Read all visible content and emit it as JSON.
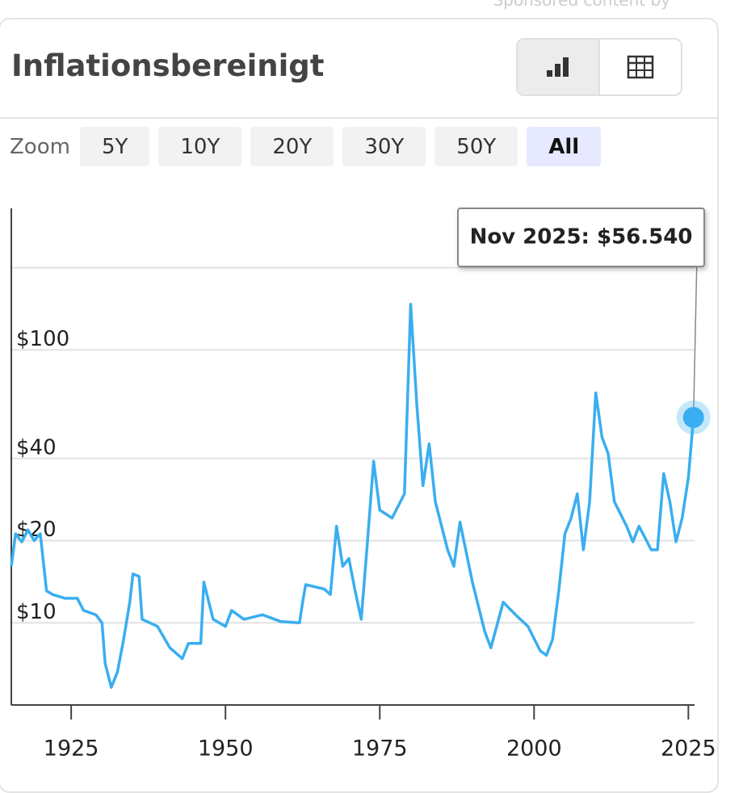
{
  "header": {
    "sponsor": "Sponsored content by"
  },
  "title": "Inflationsbereinigt",
  "zoom": {
    "label": "Zoom",
    "options": [
      "5Y",
      "10Y",
      "20Y",
      "30Y",
      "50Y",
      "All"
    ],
    "selected": 5
  },
  "chart_data": {
    "type": "line",
    "color": "#3aaef0",
    "log_scale": true,
    "grid": true,
    "x": [
      1915.3,
      1916,
      1917,
      1918,
      1919,
      1920,
      1921,
      1922,
      1924,
      1926,
      1927,
      1929,
      1930,
      1930.5,
      1931.5,
      1932.5,
      1933.5,
      1934.5,
      1935,
      1936,
      1936.5,
      1939,
      1941,
      1943,
      1944,
      1946,
      1946.5,
      1948,
      1950,
      1951,
      1953,
      1956,
      1959,
      1962,
      1962.5,
      1963,
      1966,
      1967,
      1968,
      1969,
      1970,
      1971,
      1972,
      1973,
      1974,
      1975,
      1977,
      1979,
      1980,
      1981,
      1982,
      1983,
      1984,
      1986,
      1987,
      1988,
      1990,
      1992,
      1993,
      1995,
      1997,
      1999,
      2001,
      2002,
      2003,
      2004,
      2005,
      2006,
      2007,
      2008,
      2009,
      2010,
      2011,
      2012,
      2013,
      2015,
      2016,
      2017,
      2019,
      2020,
      2021,
      2022,
      2023,
      2024,
      2025,
      2025.83
    ],
    "values": [
      16.1,
      21.2,
      19.8,
      21.9,
      20,
      21.2,
      13.1,
      12.7,
      12.3,
      12.3,
      11.1,
      10.7,
      10,
      7.1,
      5.8,
      6.6,
      8.7,
      11.9,
      15.1,
      14.8,
      10.3,
      9.7,
      8.1,
      7.4,
      8.4,
      8.4,
      14.1,
      10.3,
      9.7,
      11.1,
      10.3,
      10.7,
      10.1,
      10,
      11.9,
      13.8,
      13.3,
      12.7,
      22.6,
      16.1,
      17.2,
      13.1,
      10.3,
      19.8,
      39.1,
      25.9,
      24.2,
      29.7,
      147,
      63,
      31.8,
      45.3,
      27.8,
      18.5,
      16.1,
      23.4,
      14.1,
      9.3,
      8.1,
      11.9,
      10.7,
      9.7,
      7.9,
      7.6,
      8.7,
      13.1,
      21.2,
      24.2,
      29.7,
      18.5,
      27.8,
      69.6,
      47.9,
      41.7,
      27.8,
      22.6,
      19.8,
      22.6,
      18.5,
      18.5,
      35.2,
      27.8,
      19.8,
      24.2,
      34.1,
      56.54
    ],
    "xlim": [
      1915.3,
      2026
    ],
    "xticks": [
      1925,
      1950,
      1975,
      2000,
      2025
    ],
    "ylim": [
      5,
      330
    ],
    "yticks": [
      {
        "value": 10,
        "label": "$10"
      },
      {
        "value": 20,
        "label": "$20"
      },
      {
        "value": 40,
        "label": "$40"
      },
      {
        "value": 100,
        "label": "$100"
      },
      {
        "value": 200,
        "label": null
      }
    ],
    "tooltip": "Nov 2025: $56.540"
  }
}
